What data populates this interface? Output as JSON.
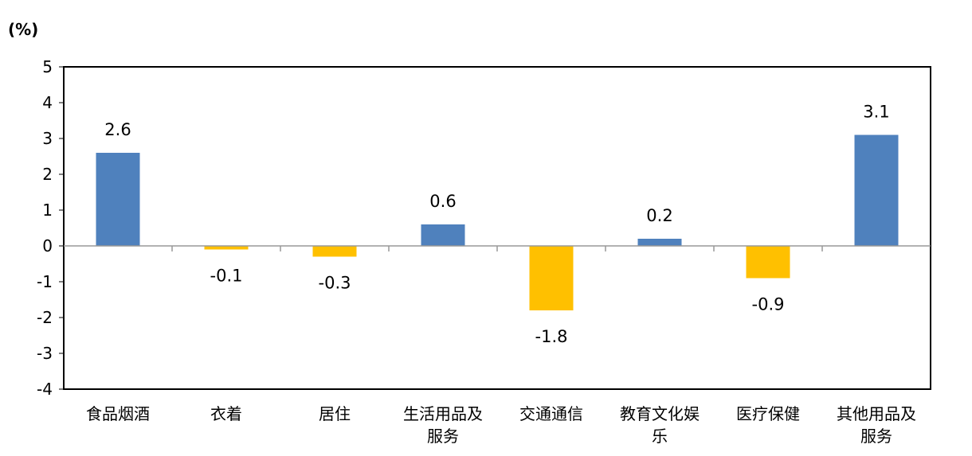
{
  "chart_data": {
    "type": "bar",
    "unit_label": "(%)",
    "categories": [
      [
        "食品烟酒"
      ],
      [
        "衣着"
      ],
      [
        "居住"
      ],
      [
        "生活用品及",
        "服务"
      ],
      [
        "交通通信"
      ],
      [
        "教育文化娱",
        "乐"
      ],
      [
        "医疗保健"
      ],
      [
        "其他用品及",
        "服务"
      ]
    ],
    "values": [
      2.6,
      -0.1,
      -0.3,
      0.6,
      -1.8,
      0.2,
      -0.9,
      3.1
    ],
    "data_labels": [
      "2.6",
      "-0.1",
      "-0.3",
      "0.6",
      "-1.8",
      "0.2",
      "-0.9",
      "3.1"
    ],
    "ylim": [
      -4,
      5
    ],
    "yticks": [
      "5",
      "4",
      "3",
      "2",
      "1",
      "0",
      "-1",
      "-2",
      "-3",
      "-4"
    ],
    "ytick_values": [
      5,
      4,
      3,
      2,
      1,
      0,
      -1,
      -2,
      -3,
      -4
    ],
    "colors": {
      "positive": "#4F81BD",
      "negative": "#FFC000"
    },
    "grid": false,
    "legend": "none"
  }
}
